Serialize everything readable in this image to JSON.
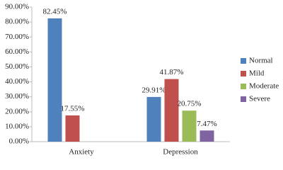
{
  "chart_data": {
    "type": "bar",
    "categories": [
      "Anxiety",
      "Depression"
    ],
    "series": [
      {
        "name": "Normal",
        "color": "#4f81bd",
        "values": [
          82.45,
          29.91
        ],
        "value_labels": [
          "82.45%",
          "29.91%"
        ]
      },
      {
        "name": "Mild",
        "color": "#c0504d",
        "values": [
          17.55,
          41.87
        ],
        "value_labels": [
          "17.55%",
          "41.87%"
        ]
      },
      {
        "name": "Moderate",
        "color": "#9bbb59",
        "values": [
          null,
          20.75
        ],
        "value_labels": [
          null,
          "20.75%"
        ]
      },
      {
        "name": "Severe",
        "color": "#8064a2",
        "values": [
          null,
          7.47
        ],
        "value_labels": [
          null,
          "7.47%"
        ]
      }
    ],
    "ylim": [
      0,
      90
    ],
    "yticks": [
      {
        "value": 0,
        "label": "0.00%"
      },
      {
        "value": 10,
        "label": "10.00%"
      },
      {
        "value": 20,
        "label": "20.00%"
      },
      {
        "value": 30,
        "label": "30.00%"
      },
      {
        "value": 40,
        "label": "40.00%"
      },
      {
        "value": 50,
        "label": "50.00%"
      },
      {
        "value": 60,
        "label": "60.00%"
      },
      {
        "value": 70,
        "label": "70.00%"
      },
      {
        "value": 80,
        "label": "80.00%"
      },
      {
        "value": 90,
        "label": "90.00%"
      }
    ],
    "grid": false,
    "legend": "right"
  }
}
